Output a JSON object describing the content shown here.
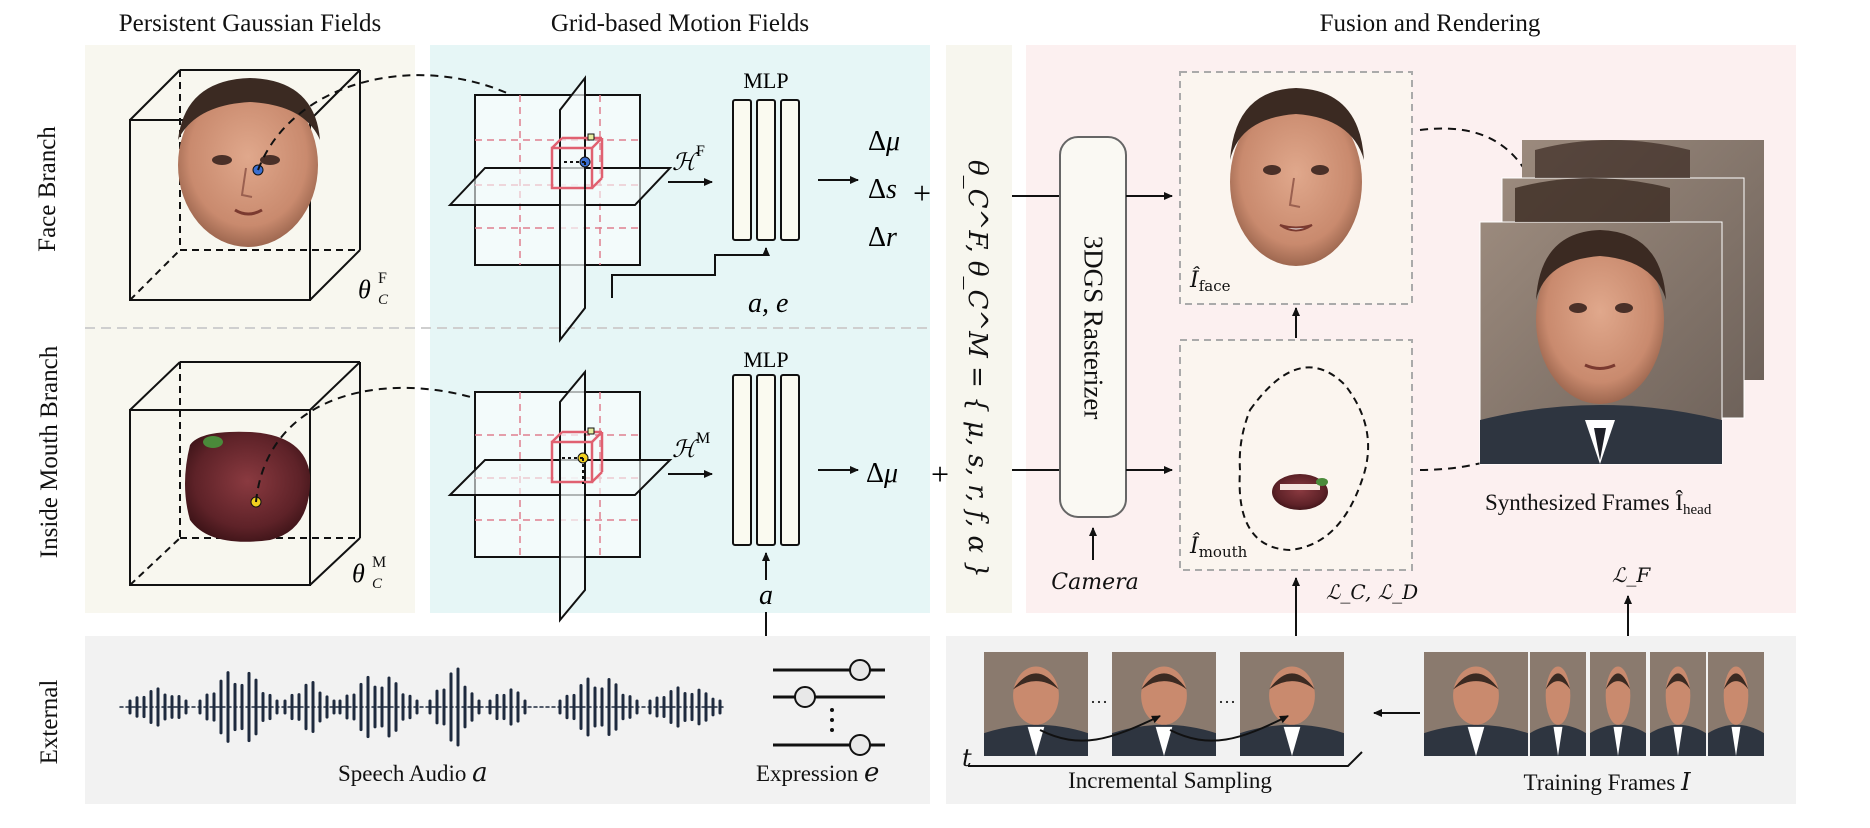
{
  "titles": {
    "gaussian": "Persistent Gaussian Fields",
    "motion": "Grid-based Motion Fields",
    "fusion": "Fusion and Rendering"
  },
  "rows": {
    "face": "Face Branch",
    "mouth": "Inside Mouth Branch",
    "external": "External"
  },
  "face_branch": {
    "theta": "θ",
    "theta_sub": "C",
    "theta_sup": "F",
    "hash": "ℋ",
    "hash_sup": "F",
    "mlp": "MLP",
    "outputs": [
      "Δμ",
      "Δs",
      "Δr"
    ],
    "inputs": "a, e",
    "plus": "+"
  },
  "mouth_branch": {
    "theta": "θ",
    "theta_sub": "C",
    "theta_sup": "M",
    "hash": "ℋ",
    "hash_sup": "M",
    "mlp": "MLP",
    "output": "Δμ",
    "input": "a",
    "plus": "+"
  },
  "params_label": "θ_C^F, θ_C^M = { μ, s, r, f, α }",
  "rasterizer": "3DGS Rasterizer",
  "camera": "Camera",
  "face_render": {
    "base": "Î",
    "sub": "face"
  },
  "mouth_render": {
    "base": "Î",
    "sub": "mouth"
  },
  "loss_cd": "ℒ_C, ℒ_D",
  "loss_f": "ℒ_F",
  "synth_label": "Synthesized Frames Î",
  "synth_sub": "head",
  "external": {
    "speech": "Speech Audio",
    "speech_var": "a",
    "expression": "Expression",
    "expression_var": "e",
    "t": "t",
    "ellipsis": "···",
    "incremental": "Incremental Sampling",
    "training": "Training Frames",
    "training_var": "I"
  },
  "colors": {
    "gaussian_bg": "#f8f7ef",
    "motion_bg": "#e6f6f6",
    "params_bg": "#f7f6ee",
    "fusion_bg": "#fcf0f0",
    "external_bg": "#f2f2f2",
    "grid_red": "#e08090",
    "cube_red": "#e06070",
    "skin": "#c98a6e",
    "suit": "#2e3540",
    "bg_photo": "#8a7a6e"
  }
}
